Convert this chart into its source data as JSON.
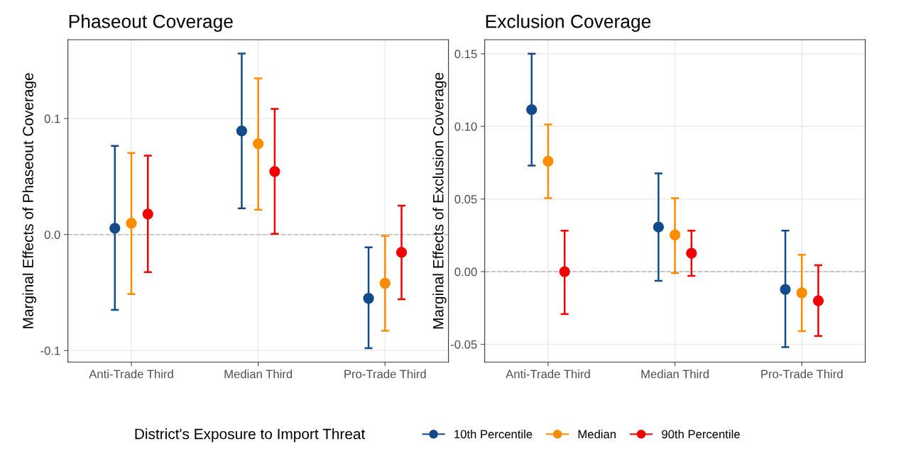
{
  "chart_data": [
    {
      "type": "scatter",
      "title": "Phaseout Coverage",
      "ylabel": "Marginal Effects of Phaseout Coverage",
      "categories": [
        "Anti-Trade Third",
        "Median Third",
        "Pro-Trade Third"
      ],
      "ylim": [
        -0.11,
        0.168
      ],
      "yticks": [
        {
          "value": -0.1,
          "label": "-0.1"
        },
        {
          "value": 0.0,
          "label": "0.0"
        },
        {
          "value": 0.1,
          "label": "0.1"
        }
      ],
      "grid": true,
      "marker": "circle",
      "legend": "bottom",
      "legend_title": "District's Exposure to Import Threat",
      "ref_lines": [
        {
          "axis": "y",
          "value": 0,
          "label": null,
          "color": "#bdbdbd",
          "line_style": "dashed"
        }
      ],
      "series": [
        {
          "name": "10th Percentile",
          "color": "#134b8a",
          "values": [
            0.0055,
            0.0893,
            -0.055
          ],
          "errors": [
            [
              -0.065,
              0.0765
            ],
            [
              0.0226,
              0.156
            ],
            [
              -0.098,
              -0.011
            ]
          ]
        },
        {
          "name": "Median",
          "color": "#ff8c00",
          "values": [
            0.0098,
            0.0783,
            -0.042
          ],
          "errors": [
            [
              -0.0514,
              0.0703
            ],
            [
              0.0214,
              0.1346
            ],
            [
              -0.083,
              -0.0012
            ]
          ]
        },
        {
          "name": "90th Percentile",
          "color": "#f20000",
          "values": [
            0.0177,
            0.0544,
            -0.0153
          ],
          "errors": [
            [
              -0.0324,
              0.068
            ],
            [
              0.0006,
              0.1083
            ],
            [
              -0.0557,
              0.025
            ]
          ]
        }
      ]
    },
    {
      "type": "scatter",
      "title": "Exclusion Coverage",
      "ylabel": "Marginal Effects of Exclusion Coverage",
      "categories": [
        "Anti-Trade Third",
        "Median Third",
        "Pro-Trade Third"
      ],
      "ylim": [
        -0.0623,
        0.1597
      ],
      "yticks": [
        {
          "value": -0.05,
          "label": "-0.05"
        },
        {
          "value": 0.0,
          "label": "0.00"
        },
        {
          "value": 0.05,
          "label": "0.05"
        },
        {
          "value": 0.1,
          "label": "0.10"
        },
        {
          "value": 0.15,
          "label": "0.15"
        }
      ],
      "grid": true,
      "marker": "circle",
      "ref_lines": [
        {
          "axis": "y",
          "value": 0,
          "label": null,
          "color": "#bdbdbd",
          "line_style": "dashed"
        }
      ],
      "series": [
        {
          "name": "10th Percentile",
          "color": "#134b8a",
          "values": [
            0.1115,
            0.0307,
            -0.0122
          ],
          "errors": [
            [
              0.073,
              0.15
            ],
            [
              -0.0063,
              0.0677
            ],
            [
              -0.052,
              0.0282
            ]
          ]
        },
        {
          "name": "Median",
          "color": "#ff8c00",
          "values": [
            0.076,
            0.0253,
            -0.0146
          ],
          "errors": [
            [
              0.0506,
              0.1013
            ],
            [
              -0.001,
              0.0506
            ],
            [
              -0.041,
              0.0117
            ]
          ]
        },
        {
          "name": "90th Percentile",
          "color": "#f20000",
          "values": [
            0.0,
            0.0127,
            -0.02
          ],
          "errors": [
            [
              -0.0292,
              0.0282
            ],
            [
              -0.0029,
              0.0282
            ],
            [
              -0.0443,
              0.0044
            ]
          ]
        }
      ]
    }
  ]
}
